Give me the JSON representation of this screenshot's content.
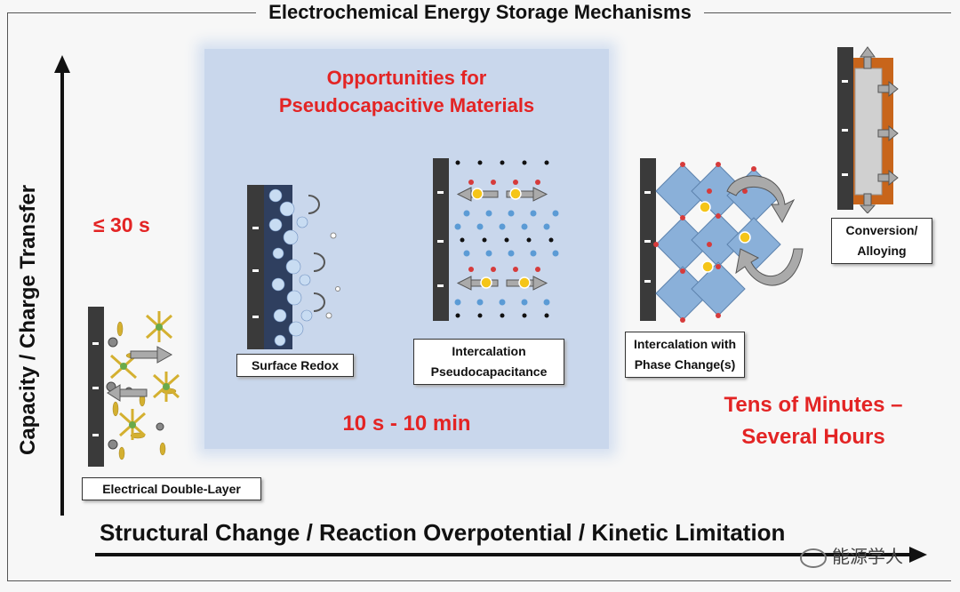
{
  "title": "Electrochemical Energy Storage Mechanisms",
  "axes": {
    "y_label": "Capacity / Charge Transfer",
    "x_label": "Structural Change / Reaction Overpotential / Kinetic Limitation"
  },
  "highlight": {
    "heading_line1": "Opportunities for",
    "heading_line2": "Pseudocapacitive Materials",
    "time": "10 s - 10 min"
  },
  "timescales": {
    "fast": "≤ 30 s",
    "slow_line1": "Tens of Minutes –",
    "slow_line2": "Several Hours"
  },
  "mechanisms": {
    "edl": "Electrical Double-Layer",
    "surface_redox": "Surface Redox",
    "intercalation_line1": "Intercalation",
    "intercalation_line2": "Pseudocapacitance",
    "phase_line1": "Intercalation with",
    "phase_line2": "Phase Change(s)",
    "conversion_line1": "Conversion/",
    "conversion_line2": "Alloying"
  },
  "watermark": "能源学人",
  "colors": {
    "accent_red": "#e32424",
    "highlight_blue": "#c9d7ec",
    "electrode": "#3a3a3a",
    "ion_blue": "#5b9bd5",
    "ion_gold": "#f5c518",
    "conversion_orange": "#c8651b"
  }
}
